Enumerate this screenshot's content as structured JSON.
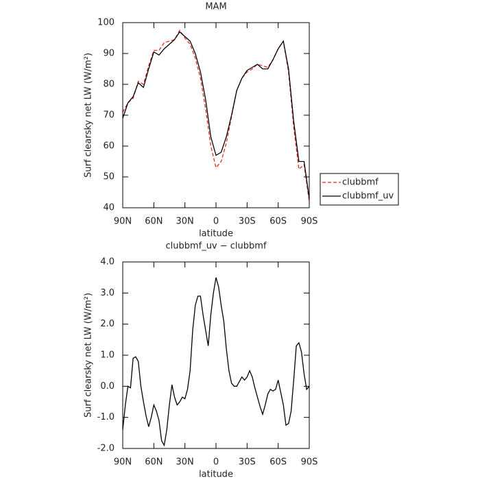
{
  "chart_data": [
    {
      "type": "line",
      "title": "MAM",
      "xlabel": "latitude",
      "ylabel": "Surf clearsky net LW (W/m²)",
      "x": [
        90,
        85,
        80,
        75,
        70,
        65,
        60,
        55,
        50,
        45,
        40,
        35,
        30,
        25,
        20,
        15,
        10,
        5,
        0,
        -5,
        -10,
        -15,
        -20,
        -25,
        -30,
        -35,
        -40,
        -45,
        -50,
        -55,
        -60,
        -65,
        -70,
        -75,
        -80,
        -85,
        -90
      ],
      "series": [
        {
          "name": "clubbmf",
          "color": "#e8261f",
          "dashed": true,
          "values": [
            71,
            74,
            75.5,
            81,
            80,
            86,
            91,
            91,
            93.5,
            94,
            94.5,
            97.5,
            95,
            93,
            88.5,
            82,
            72,
            60,
            53,
            55,
            61,
            69.5,
            78,
            82,
            84,
            85,
            86.5,
            86,
            85.5,
            88,
            91.5,
            94,
            84,
            66,
            52.5,
            54,
            42
          ]
        },
        {
          "name": "clubbmf_uv",
          "color": "#000000",
          "dashed": false,
          "values": [
            69,
            74,
            76,
            80.5,
            79,
            85,
            90.5,
            89.5,
            91.5,
            93,
            94.5,
            97,
            95.5,
            94,
            90,
            84,
            75,
            63,
            57,
            58,
            63,
            70,
            78,
            82,
            84.5,
            85.5,
            86.5,
            85,
            85,
            88,
            91.5,
            94,
            85,
            68,
            55,
            55,
            43
          ]
        }
      ],
      "xlim": [
        90,
        -90
      ],
      "xticks": [
        {
          "value": 90,
          "label": "90N"
        },
        {
          "value": 60,
          "label": "60N"
        },
        {
          "value": 30,
          "label": "30N"
        },
        0,
        {
          "value": -30,
          "label": "30S"
        },
        {
          "value": -60,
          "label": "60S"
        },
        {
          "value": -90,
          "label": "90S"
        }
      ],
      "ylim": [
        40,
        100
      ],
      "yticks": [
        40,
        50,
        60,
        70,
        80,
        90,
        100
      ],
      "legend": "right"
    },
    {
      "type": "line",
      "title": "clubbmf_uv − clubbmf",
      "xlabel": "latitude",
      "ylabel": "Surf clearsky net LW (W/m²)",
      "x": [
        90,
        87.5,
        85,
        82.5,
        80,
        77.5,
        75,
        72.5,
        70,
        67.5,
        65,
        62.5,
        60,
        57.5,
        55,
        52.5,
        50,
        47.5,
        45,
        42.5,
        40,
        37.5,
        35,
        32.5,
        30,
        27.5,
        25,
        22.5,
        20,
        17.5,
        15,
        12.5,
        10,
        7.5,
        5,
        2.5,
        0,
        -2.5,
        -5,
        -7.5,
        -10,
        -12.5,
        -15,
        -17.5,
        -20,
        -22.5,
        -25,
        -27.5,
        -30,
        -32.5,
        -35,
        -37.5,
        -40,
        -42.5,
        -45,
        -47.5,
        -50,
        -52.5,
        -55,
        -57.5,
        -60,
        -62.5,
        -65,
        -67.5,
        -70,
        -72.5,
        -75,
        -77.5,
        -80,
        -82.5,
        -85,
        -87.5,
        -90
      ],
      "series": [
        {
          "name": "clubbmf_uv − clubbmf",
          "color": "#000000",
          "dashed": false,
          "values": [
            -1.4,
            -0.6,
            0.0,
            -0.05,
            0.9,
            0.95,
            0.8,
            0.0,
            -0.5,
            -0.95,
            -1.3,
            -1.0,
            -0.6,
            -0.8,
            -1.1,
            -1.75,
            -1.9,
            -1.4,
            -0.6,
            0.05,
            -0.35,
            -0.6,
            -0.5,
            -0.35,
            -0.4,
            -0.1,
            0.5,
            1.8,
            2.6,
            2.9,
            2.9,
            2.3,
            1.8,
            1.3,
            2.3,
            3.0,
            3.5,
            3.2,
            2.6,
            2.1,
            1.2,
            0.5,
            0.1,
            0.0,
            0.0,
            0.15,
            0.3,
            0.2,
            0.3,
            0.5,
            0.3,
            -0.05,
            -0.35,
            -0.65,
            -0.9,
            -0.6,
            -0.25,
            -0.1,
            -0.15,
            -0.1,
            0.2,
            -0.2,
            -0.6,
            -1.25,
            -1.2,
            -0.8,
            0.2,
            1.3,
            1.4,
            1.1,
            0.4,
            -0.1,
            0.0
          ]
        }
      ],
      "xlim": [
        90,
        -90
      ],
      "xticks": [
        {
          "value": 90,
          "label": "90N"
        },
        {
          "value": 60,
          "label": "60N"
        },
        {
          "value": 30,
          "label": "30N"
        },
        0,
        {
          "value": -30,
          "label": "30S"
        },
        {
          "value": -60,
          "label": "60S"
        },
        {
          "value": -90,
          "label": "90S"
        }
      ],
      "ylim": [
        -2,
        4
      ],
      "yticks": [
        {
          "value": -2,
          "label": "-2.0"
        },
        {
          "value": -1,
          "label": "-1.0"
        },
        {
          "value": 0,
          "label": "0.0"
        },
        {
          "value": 1,
          "label": "1.0"
        },
        {
          "value": 2,
          "label": "2.0"
        },
        {
          "value": 3,
          "label": "3.0"
        },
        {
          "value": 4,
          "label": "4.0"
        }
      ]
    }
  ]
}
